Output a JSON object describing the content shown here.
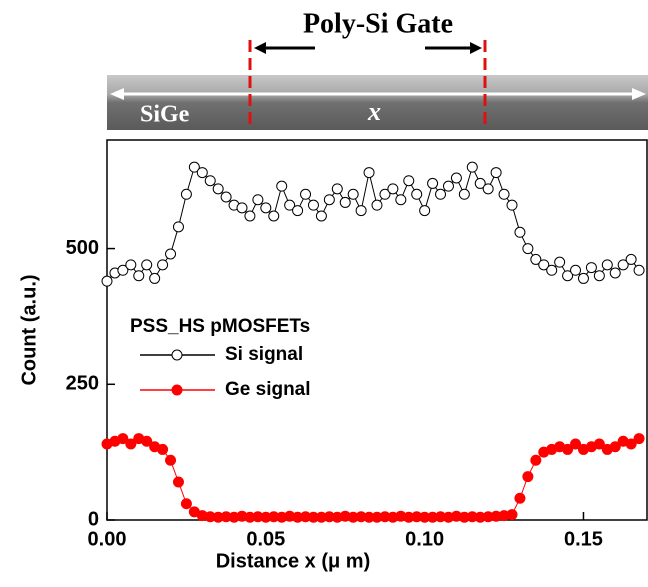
{
  "chart_data": {
    "type": "line",
    "title": "Poly-Si Gate",
    "annotations": [
      "SiGe",
      "x",
      "PSS_HS pMOSFETs"
    ],
    "x_label": "Distance x (μ m)",
    "y_label": "Count (a.u.)",
    "x": [
      0,
      0.0025,
      0.005,
      0.0075,
      0.01,
      0.0125,
      0.015,
      0.0175,
      0.02,
      0.0225,
      0.025,
      0.0275,
      0.03,
      0.0325,
      0.035,
      0.0375,
      0.04,
      0.0425,
      0.045,
      0.0475,
      0.05,
      0.0525,
      0.055,
      0.0575,
      0.06,
      0.0625,
      0.065,
      0.0675,
      0.07,
      0.0725,
      0.075,
      0.0775,
      0.08,
      0.0825,
      0.085,
      0.0875,
      0.09,
      0.0925,
      0.095,
      0.0975,
      0.1,
      0.1025,
      0.105,
      0.1075,
      0.11,
      0.1125,
      0.115,
      0.1175,
      0.12,
      0.1225,
      0.125,
      0.1275,
      0.13,
      0.1325,
      0.135,
      0.1375,
      0.14,
      0.1425,
      0.145,
      0.1475,
      0.15,
      0.1525,
      0.155,
      0.1575,
      0.16,
      0.1625,
      0.165,
      0.1675
    ],
    "series": [
      {
        "name": "Si signal",
        "color": "#000000",
        "marker": "open",
        "values": [
          440,
          455,
          460,
          470,
          450,
          470,
          445,
          470,
          490,
          540,
          600,
          650,
          640,
          625,
          610,
          595,
          580,
          575,
          560,
          590,
          575,
          560,
          615,
          580,
          570,
          600,
          580,
          560,
          590,
          610,
          585,
          600,
          570,
          640,
          580,
          600,
          610,
          590,
          625,
          600,
          570,
          620,
          600,
          615,
          630,
          600,
          650,
          620,
          610,
          640,
          600,
          580,
          530,
          500,
          480,
          470,
          460,
          475,
          450,
          460,
          445,
          465,
          450,
          470,
          455,
          470,
          480,
          460
        ]
      },
      {
        "name": "Ge signal",
        "color": "#ff0000",
        "marker": "filled",
        "values": [
          140,
          145,
          150,
          140,
          150,
          145,
          135,
          130,
          110,
          70,
          30,
          15,
          8,
          6,
          5,
          6,
          5,
          7,
          5,
          6,
          5,
          6,
          5,
          7,
          5,
          6,
          5,
          5,
          6,
          5,
          7,
          5,
          6,
          5,
          5,
          6,
          5,
          7,
          5,
          6,
          5,
          5,
          6,
          5,
          7,
          5,
          6,
          5,
          6,
          7,
          8,
          10,
          40,
          80,
          110,
          125,
          130,
          135,
          130,
          140,
          130,
          135,
          140,
          130,
          135,
          145,
          140,
          150
        ]
      }
    ],
    "xlim": [
      0,
      0.17
    ],
    "ylim": [
      0,
      700
    ],
    "xticks": [
      {
        "value": 0,
        "label": "0.00"
      },
      0.05,
      {
        "value": 0.1,
        "label": "0.10"
      },
      0.15
    ],
    "yticks": [
      0,
      250,
      500
    ]
  }
}
